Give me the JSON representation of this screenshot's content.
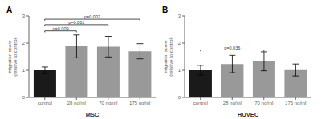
{
  "chart_data": [
    {
      "type": "bar",
      "title": "A",
      "categories": [
        "control",
        "28 ng/ml",
        "70 ng/ml",
        "175 ng/ml"
      ],
      "values": [
        1.0,
        1.88,
        1.87,
        1.7
      ],
      "errors": [
        0.12,
        0.42,
        0.38,
        0.28
      ],
      "colors": [
        "#1a1a1a",
        "#999999",
        "#999999",
        "#999999"
      ],
      "xlabel": "MSC",
      "ylabel": "migration score\n(relative to control)",
      "ylim": [
        0,
        3
      ],
      "yticks": [
        0,
        1,
        2,
        3
      ],
      "grid": false,
      "annotations": [
        {
          "x1": "control",
          "x2": "28 ng/ml",
          "y": 2.45,
          "text": "p=0.009"
        },
        {
          "x1": "control",
          "x2": "70 ng/ml",
          "y": 2.68,
          "text": "p=0.001"
        },
        {
          "x1": "control",
          "x2": "175 ng/ml",
          "y": 2.88,
          "text": "p=0.002"
        }
      ]
    },
    {
      "type": "bar",
      "title": "B",
      "categories": [
        "control",
        "28 ng/ml",
        "70 ng/ml",
        "175 ng/ml"
      ],
      "values": [
        1.0,
        1.23,
        1.33,
        1.01
      ],
      "errors": [
        0.18,
        0.32,
        0.35,
        0.22
      ],
      "colors": [
        "#1a1a1a",
        "#999999",
        "#999999",
        "#999999"
      ],
      "xlabel": "HUVEC",
      "ylabel": "migration score\n(relative to control)",
      "ylim": [
        0,
        3
      ],
      "yticks": [
        0,
        1,
        2,
        3
      ],
      "grid": false,
      "annotations": [
        {
          "x1": "control",
          "x2": "70 ng/ml",
          "y": 1.75,
          "text": "p=0.036"
        }
      ]
    }
  ]
}
